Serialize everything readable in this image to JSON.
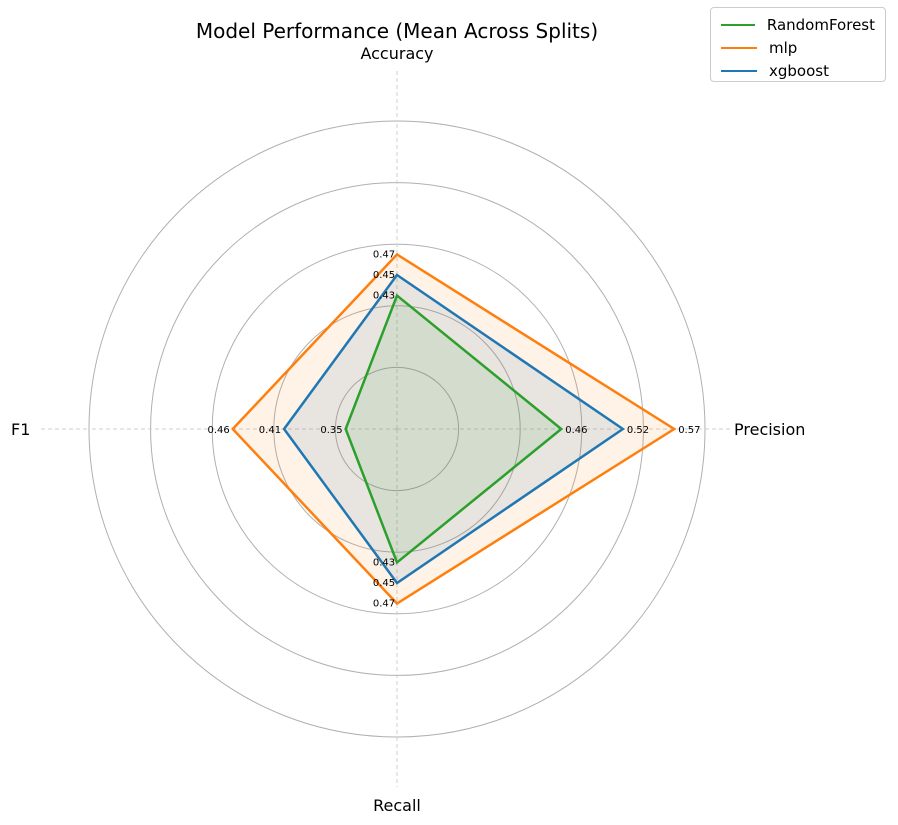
{
  "chart_data": {
    "type": "radar",
    "title": "Model Performance (Mean Across Splits)",
    "axes": [
      "Accuracy",
      "Precision",
      "Recall",
      "F1"
    ],
    "rlim": [
      0.3,
      0.6
    ],
    "grid": true,
    "legend_position": "top-right",
    "series": [
      {
        "name": "RandomForest",
        "color": "#2ca02c",
        "values": [
          0.43,
          0.46,
          0.43,
          0.35
        ],
        "value_labels": [
          "0.43",
          "0.46",
          "0.43",
          "0.35"
        ]
      },
      {
        "name": "mlp",
        "color": "#ff7f0e",
        "values": [
          0.47,
          0.57,
          0.47,
          0.46
        ],
        "value_labels": [
          "0.47",
          "0.57",
          "0.47",
          "0.46"
        ]
      },
      {
        "name": "xgboost",
        "color": "#1f77b4",
        "values": [
          0.45,
          0.52,
          0.45,
          0.41
        ],
        "value_labels": [
          "0.45",
          "0.52",
          "0.45",
          "0.41"
        ]
      }
    ]
  }
}
